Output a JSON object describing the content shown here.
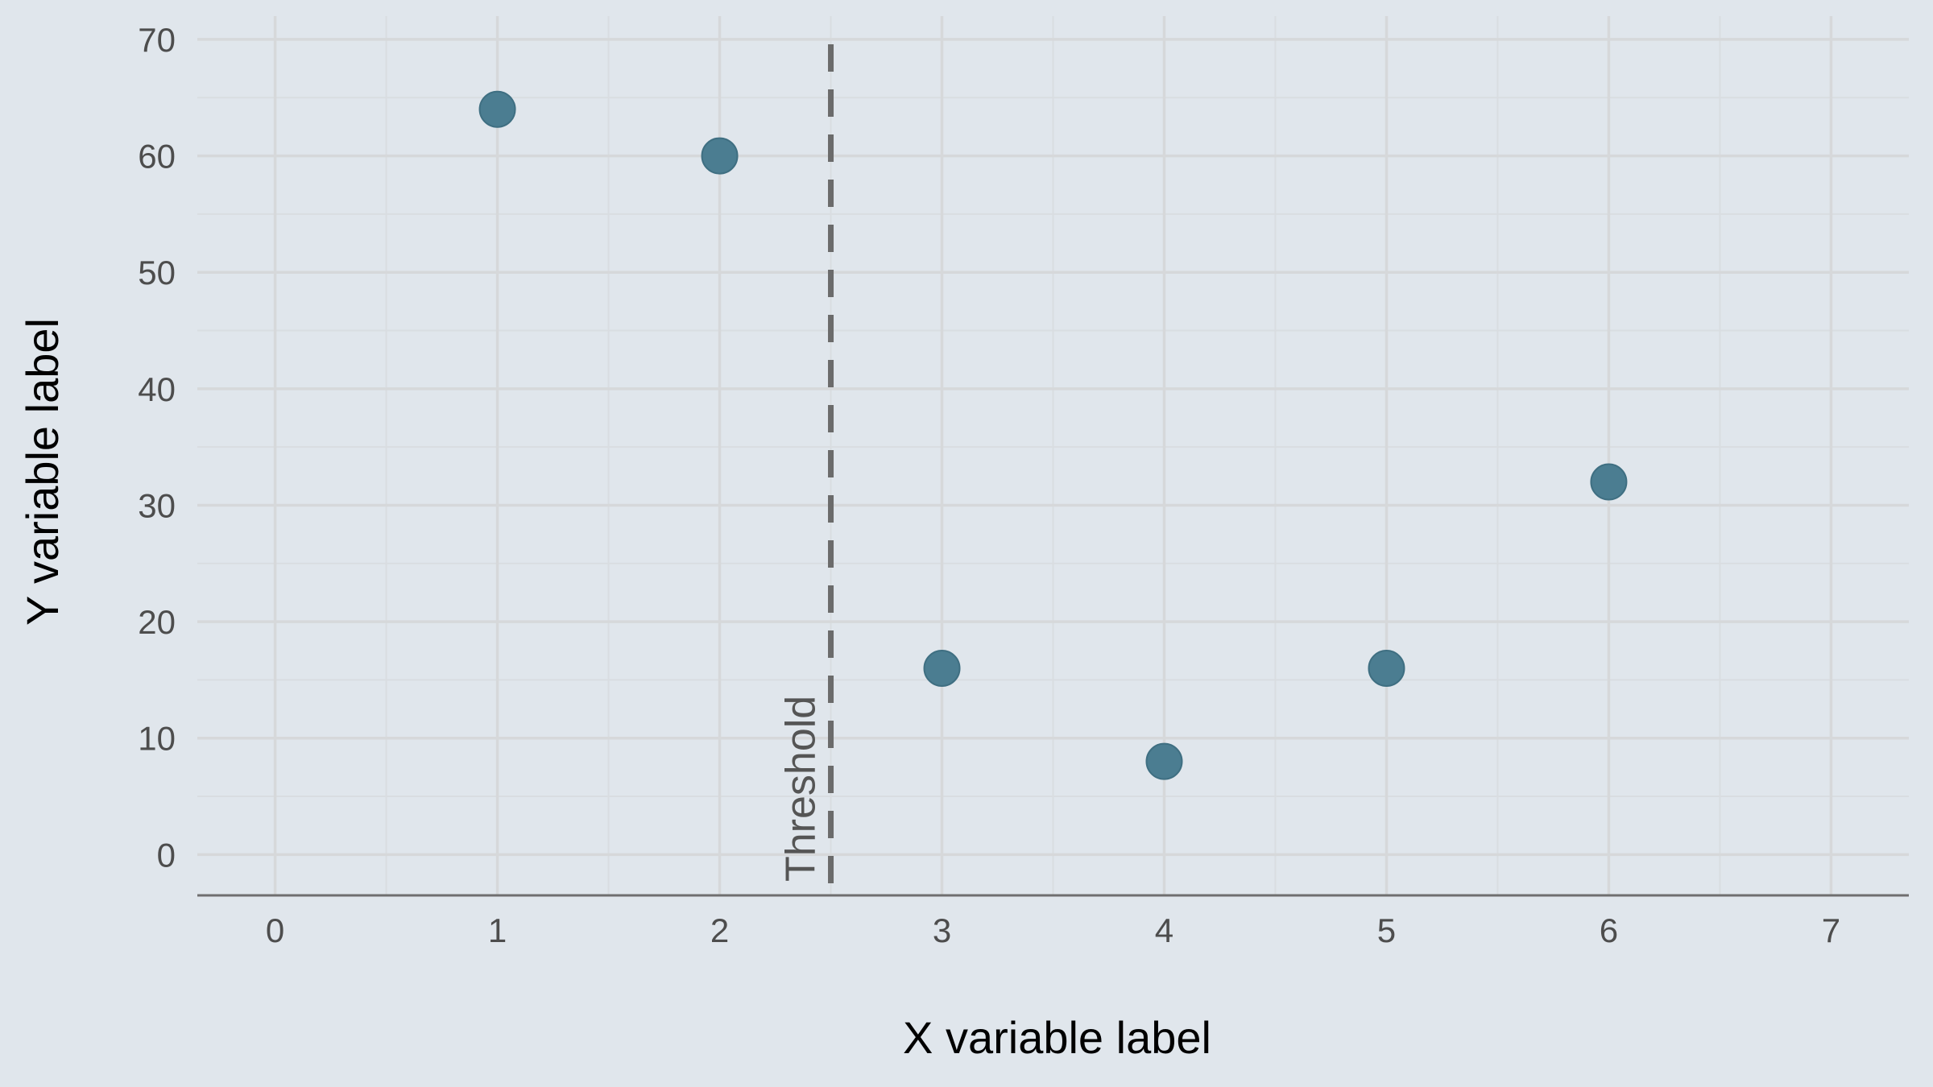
{
  "chart_data": {
    "type": "scatter",
    "title": "",
    "xlabel": "X variable label",
    "ylabel": "Y variable label",
    "x": [
      1,
      2,
      3,
      4,
      5,
      6
    ],
    "y": [
      64,
      60,
      16,
      8,
      16,
      32
    ],
    "xlim": [
      -0.35,
      7.35
    ],
    "ylim": [
      -3.5,
      72
    ],
    "x_ticks": [
      "0",
      "1",
      "2",
      "3",
      "4",
      "5",
      "6",
      "7"
    ],
    "y_ticks": [
      "0",
      "10",
      "20",
      "30",
      "40",
      "50",
      "60",
      "70"
    ],
    "grid": true,
    "reference_line": {
      "orientation": "vertical",
      "x": 2.5,
      "style": "dashed",
      "label": "Threshold"
    },
    "colors": {
      "background": "#e0e6ec",
      "points": "#4b7d91",
      "reference_line": "#6b6b6b"
    }
  }
}
